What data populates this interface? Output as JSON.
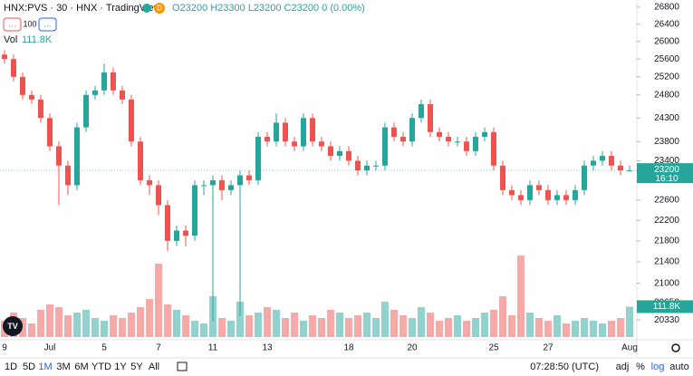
{
  "header": {
    "symbol": "HNX:PVS · 30 · HNX · TradingView",
    "badge": "D",
    "ohlc": "O23200 H23300 L23200 C23200 0 (0.00%)",
    "indicator_buttons": [
      "…",
      "100",
      "…"
    ],
    "volume_title": "Vol",
    "volume_value": "111.8K"
  },
  "chart_data": {
    "type": "candlestick",
    "log_scale": true,
    "grid": false,
    "up_color": "#26a69a",
    "down_color": "#ef5350",
    "categories": [
      "9",
      null,
      null,
      null,
      null,
      "Jul",
      null,
      null,
      null,
      null,
      null,
      "5",
      null,
      null,
      null,
      null,
      null,
      "7",
      null,
      null,
      null,
      null,
      null,
      "11",
      null,
      null,
      null,
      null,
      null,
      "13",
      null,
      null,
      null,
      null,
      null,
      null,
      null,
      null,
      "18",
      null,
      null,
      null,
      null,
      null,
      null,
      "20",
      null,
      null,
      null,
      null,
      null,
      null,
      null,
      null,
      "25",
      null,
      null,
      null,
      null,
      null,
      "27",
      null,
      null,
      null,
      null,
      null,
      null,
      null,
      null,
      "Aug"
    ],
    "open": [
      25700,
      25600,
      25200,
      24800,
      24700,
      24300,
      23700,
      23300,
      22900,
      24100,
      24800,
      24900,
      25300,
      24900,
      24700,
      23800,
      23000,
      22900,
      22500,
      21800,
      22000,
      21900,
      22900,
      22900,
      23000,
      22800,
      22900,
      23100,
      23000,
      23900,
      23800,
      24200,
      23800,
      23700,
      24300,
      23800,
      23700,
      23500,
      23600,
      23400,
      23200,
      23300,
      23300,
      24100,
      23900,
      23800,
      24300,
      24600,
      24000,
      23900,
      23800,
      23800,
      23600,
      23900,
      24000,
      23300,
      22800,
      22700,
      22600,
      22900,
      22800,
      22600,
      22700,
      22600,
      22800,
      23300,
      23400,
      23500,
      23300,
      23200
    ],
    "high": [
      25800,
      25700,
      25300,
      24900,
      24800,
      24400,
      23800,
      23400,
      24200,
      24900,
      25000,
      25500,
      25400,
      25000,
      24800,
      23900,
      23100,
      23000,
      22600,
      22100,
      22100,
      23000,
      23000,
      23100,
      23100,
      23000,
      23200,
      23200,
      24000,
      24000,
      24400,
      24300,
      23900,
      24400,
      24400,
      23900,
      23800,
      23700,
      23700,
      23500,
      23400,
      23400,
      24200,
      24200,
      24000,
      24400,
      24700,
      24700,
      24100,
      24000,
      23900,
      23900,
      24000,
      24100,
      24100,
      23400,
      22900,
      22800,
      23000,
      23000,
      22900,
      22800,
      22800,
      22900,
      23400,
      23500,
      23600,
      23600,
      23400,
      23300
    ],
    "low": [
      25500,
      25100,
      24700,
      24600,
      24200,
      23600,
      22500,
      22700,
      22800,
      24000,
      24700,
      24800,
      24800,
      24600,
      23700,
      22900,
      22700,
      22300,
      21600,
      21700,
      21700,
      21800,
      22700,
      20300,
      22600,
      22700,
      20400,
      22900,
      22900,
      23700,
      23700,
      23700,
      23600,
      23600,
      23700,
      23600,
      23400,
      23400,
      23300,
      23100,
      23100,
      23200,
      23200,
      23800,
      23700,
      23700,
      24200,
      23900,
      23800,
      23700,
      23700,
      23500,
      23500,
      23800,
      23200,
      22700,
      22600,
      22500,
      22500,
      22700,
      22500,
      22500,
      22500,
      22500,
      22700,
      23200,
      23300,
      23200,
      23100,
      23200
    ],
    "close": [
      25600,
      25200,
      24800,
      24700,
      24300,
      23700,
      23300,
      22900,
      24100,
      24800,
      24900,
      25300,
      24900,
      24700,
      23800,
      23000,
      22900,
      22500,
      21800,
      22000,
      21900,
      22900,
      22900,
      23000,
      22800,
      22900,
      23100,
      23000,
      23900,
      23800,
      24200,
      23800,
      23700,
      24300,
      23800,
      23700,
      23500,
      23600,
      23400,
      23200,
      23300,
      23300,
      24100,
      23900,
      23800,
      24300,
      24600,
      24000,
      23900,
      23800,
      23800,
      23600,
      23900,
      24000,
      23300,
      22800,
      22700,
      22600,
      22900,
      22800,
      22600,
      22700,
      22600,
      22800,
      23300,
      23400,
      23500,
      23300,
      23200,
      23200
    ],
    "volume": [
      60000,
      90000,
      70000,
      50000,
      100000,
      120000,
      110000,
      80000,
      90000,
      100000,
      70000,
      60000,
      80000,
      70000,
      90000,
      110000,
      140000,
      270000,
      120000,
      100000,
      80000,
      60000,
      50000,
      150000,
      70000,
      60000,
      130000,
      80000,
      90000,
      110000,
      100000,
      70000,
      90000,
      60000,
      80000,
      70000,
      100000,
      90000,
      70000,
      80000,
      90000,
      70000,
      130000,
      100000,
      80000,
      70000,
      110000,
      90000,
      60000,
      70000,
      80000,
      60000,
      70000,
      90000,
      100000,
      150000,
      80000,
      300000,
      90000,
      70000,
      60000,
      80000,
      50000,
      60000,
      70000,
      60000,
      50000,
      60000,
      70000,
      111800
    ],
    "volume_value_label": "111.8K",
    "ylim": [
      19660,
      26970
    ],
    "yticks": [
      26800,
      26400,
      26000,
      25600,
      25200,
      24800,
      24300,
      23800,
      23400,
      22600,
      22200,
      21800,
      21400,
      21000,
      20650,
      20330
    ],
    "countdown": "16:10"
  },
  "toolbar": {
    "ranges": [
      "1D",
      "5D",
      "1M",
      "3M",
      "6M",
      "YTD",
      "1Y",
      "5Y",
      "All"
    ],
    "clock": "07:28:50 (UTC)",
    "options": [
      "adj",
      "%",
      "log",
      "auto"
    ]
  }
}
